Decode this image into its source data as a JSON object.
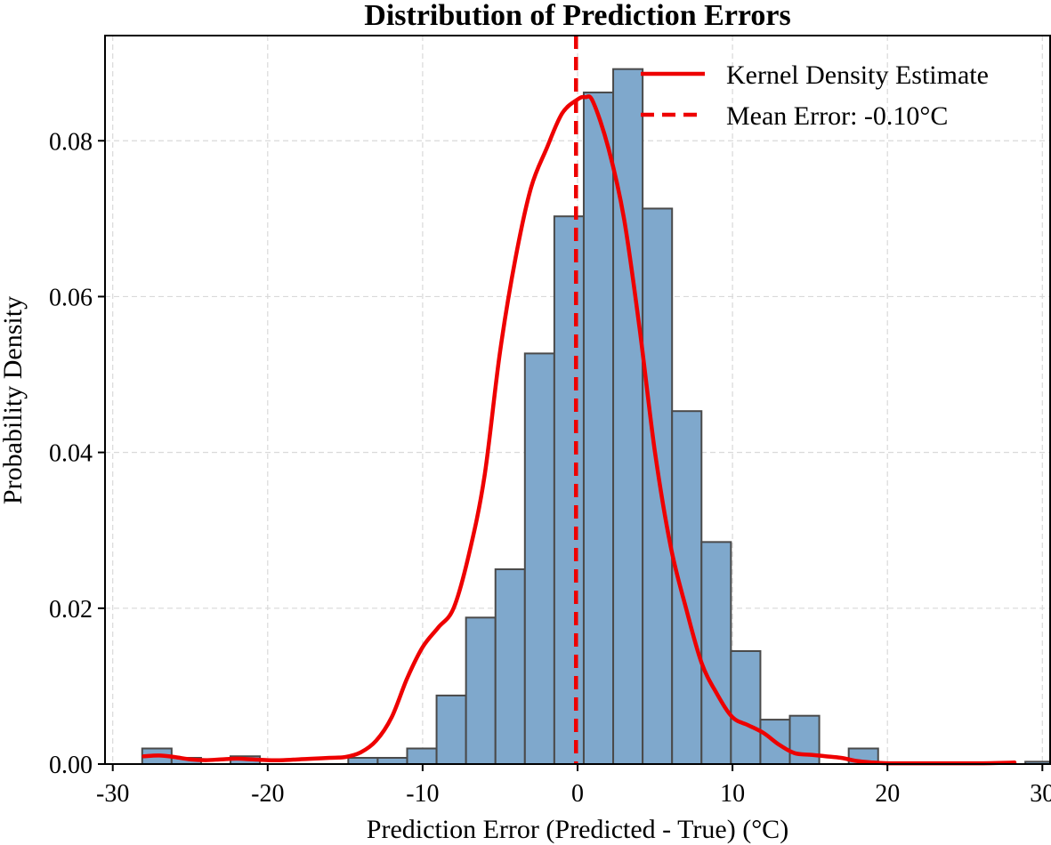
{
  "chart_data": {
    "type": "histogram",
    "title": "Distribution of Prediction Errors",
    "xlabel": "Prediction Error (Predicted - True) (°C)",
    "ylabel": "Probability Density",
    "xlim": [
      -30.5,
      30.5
    ],
    "ylim": [
      0,
      0.0935
    ],
    "xticks": [
      -30,
      -20,
      -10,
      0,
      10,
      20,
      30
    ],
    "yticks": [
      0.0,
      0.02,
      0.04,
      0.06,
      0.08
    ],
    "ytick_labels": [
      "0.00",
      "0.02",
      "0.04",
      "0.06",
      "0.08"
    ],
    "grid": true,
    "legend_position": "top-right",
    "colors": {
      "bars": "#7fa8cc",
      "bar_edge": "#4a4a4a",
      "kde": "#ee0000",
      "mean_line": "#ee0000"
    },
    "bins": {
      "start": -28.1,
      "width": 1.9,
      "densities": [
        0.002,
        0.0008,
        0.0,
        0.001,
        0.0,
        0.0,
        0.0,
        0.0008,
        0.0008,
        0.002,
        0.0088,
        0.0188,
        0.025,
        0.0527,
        0.0703,
        0.0862,
        0.0892,
        0.0713,
        0.0453,
        0.0285,
        0.0145,
        0.0057,
        0.0062,
        0.0,
        0.002,
        0.0,
        0.0,
        0.0,
        0.0,
        0.0,
        0.0003
      ]
    },
    "series": [
      {
        "name": "Kernel Density Estimate",
        "style": "solid",
        "x": [
          -28,
          -27,
          -26,
          -25,
          -24,
          -23,
          -22,
          -21,
          -20,
          -19,
          -18,
          -17,
          -16,
          -15,
          -14,
          -13,
          -12,
          -11,
          -10,
          -9,
          -8,
          -7,
          -6,
          -5,
          -4,
          -3,
          -2,
          -1,
          0,
          0.5,
          1,
          2,
          3,
          4,
          5,
          6,
          7,
          8,
          9,
          10,
          11,
          12,
          13,
          14,
          15,
          16,
          17,
          18,
          19,
          20,
          22,
          24,
          26,
          28.2
        ],
        "y": [
          0.001,
          0.0011,
          0.0009,
          0.0006,
          0.0005,
          0.0006,
          0.0007,
          0.0006,
          0.0005,
          0.0005,
          0.0006,
          0.0007,
          0.0008,
          0.0009,
          0.0015,
          0.003,
          0.006,
          0.011,
          0.015,
          0.0175,
          0.02,
          0.027,
          0.037,
          0.053,
          0.065,
          0.074,
          0.079,
          0.0835,
          0.0853,
          0.0856,
          0.085,
          0.079,
          0.07,
          0.056,
          0.04,
          0.028,
          0.02,
          0.013,
          0.009,
          0.006,
          0.005,
          0.004,
          0.0025,
          0.0014,
          0.0012,
          0.001,
          0.0008,
          0.0004,
          0.0002,
          0.0001,
          0.0001,
          0.0001,
          0.0001,
          0.0002
        ]
      },
      {
        "name": "Mean Error: -0.10°C",
        "style": "dashed",
        "x_value": -0.1
      }
    ]
  }
}
